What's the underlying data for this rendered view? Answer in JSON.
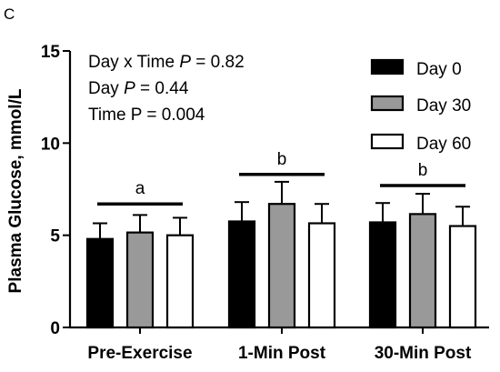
{
  "chart_data": {
    "type": "bar",
    "panel_label": "C",
    "ylabel": "Plasma Glucose, mmol/L",
    "ylim": [
      0,
      15
    ],
    "yticks": [
      "0",
      "5",
      "10",
      "15"
    ],
    "categories": [
      "Pre-Exercise",
      "1-Min Post",
      "30-Min Post"
    ],
    "series": [
      {
        "name": "Day 0",
        "color": "#000000",
        "values": [
          4.8,
          5.75,
          5.7
        ],
        "errors": [
          0.85,
          1.05,
          1.05
        ]
      },
      {
        "name": "Day 30",
        "color": "#999999",
        "values": [
          5.15,
          6.7,
          6.15
        ],
        "errors": [
          0.95,
          1.2,
          1.1
        ]
      },
      {
        "name": "Day 60",
        "color": "#ffffff",
        "values": [
          5.0,
          5.65,
          5.5
        ],
        "errors": [
          0.95,
          1.05,
          1.05
        ]
      }
    ],
    "annotations": {
      "stats": [
        {
          "prefix": "Day x  Time ",
          "italic": "P",
          "suffix": " = 0.82"
        },
        {
          "prefix": "Day ",
          "italic": "P",
          "suffix": " = 0.44"
        },
        {
          "prefix": "Time P = 0.004",
          "italic": "",
          "suffix": ""
        }
      ],
      "significance": [
        {
          "category": 0,
          "letter": "a",
          "level": 6.7
        },
        {
          "category": 1,
          "letter": "b",
          "level": 8.3
        },
        {
          "category": 2,
          "letter": "b",
          "level": 7.7
        }
      ]
    },
    "legend_position": "top-right"
  }
}
